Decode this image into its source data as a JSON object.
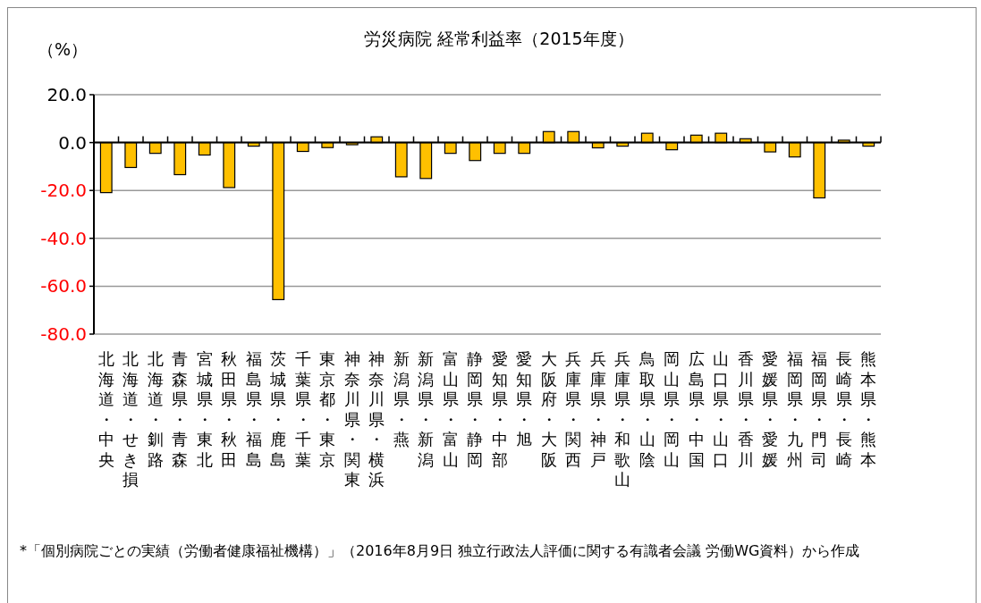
{
  "chart_data": {
    "type": "bar",
    "title": "労災病院 経常利益率（2015年度）",
    "ylabel": "（%）",
    "categories": [
      "北海道・中央",
      "北海道・せき損",
      "北海道・釧路",
      "青森県・青森",
      "宮城県・東北",
      "秋田県・秋田",
      "福島県・福島",
      "茨城県・鹿島",
      "千葉県・千葉",
      "東京都・東京",
      "神奈川県・関東",
      "神奈川県・横浜",
      "新潟県・燕",
      "新潟県・新潟",
      "富山県・富山",
      "静岡県・静岡",
      "愛知県・中部",
      "愛知県・旭",
      "大阪府・大阪",
      "兵庫県・関西",
      "兵庫県・神戸",
      "兵庫県・和歌山",
      "鳥取県・山陰",
      "岡山県・岡山",
      "広島県・中国",
      "山口県・山口",
      "香川県・香川",
      "愛媛県・愛媛",
      "福岡県・九州",
      "福岡県・門司",
      "長崎県・長崎",
      "熊本県・熊本"
    ],
    "series": [
      {
        "color": "#ffc000",
        "values": [
          -20.9,
          -10.4,
          -4.5,
          -13.4,
          -5.2,
          -18.8,
          -1.5,
          -65.6,
          -3.7,
          -2.1,
          -0.9,
          2.4,
          -14.3,
          -15.0,
          -4.5,
          -7.5,
          -4.5,
          -4.5,
          4.6,
          4.6,
          -2.2,
          -1.5,
          3.9,
          -3.0,
          3.1,
          3.9,
          1.6,
          -3.9,
          -6.0,
          -23.1,
          1.0,
          -1.5
        ]
      }
    ],
    "ylim": [
      -80,
      20
    ],
    "yticks": [
      {
        "value": -80,
        "label": "-80.0"
      },
      {
        "value": -60,
        "label": "-60.0"
      },
      {
        "value": -40,
        "label": "-40.0"
      },
      {
        "value": -20,
        "label": "-20.0"
      },
      {
        "value": 0,
        "label": "0.0"
      },
      {
        "value": 20,
        "label": "20.0"
      }
    ],
    "grid": "y",
    "annotations": [
      "*「個別病院ごとの実績（労働者健康福祉機構）」（2016年8月9日 独立行政法人評価に関する有識者会議 労働WG資料）から作成"
    ]
  }
}
